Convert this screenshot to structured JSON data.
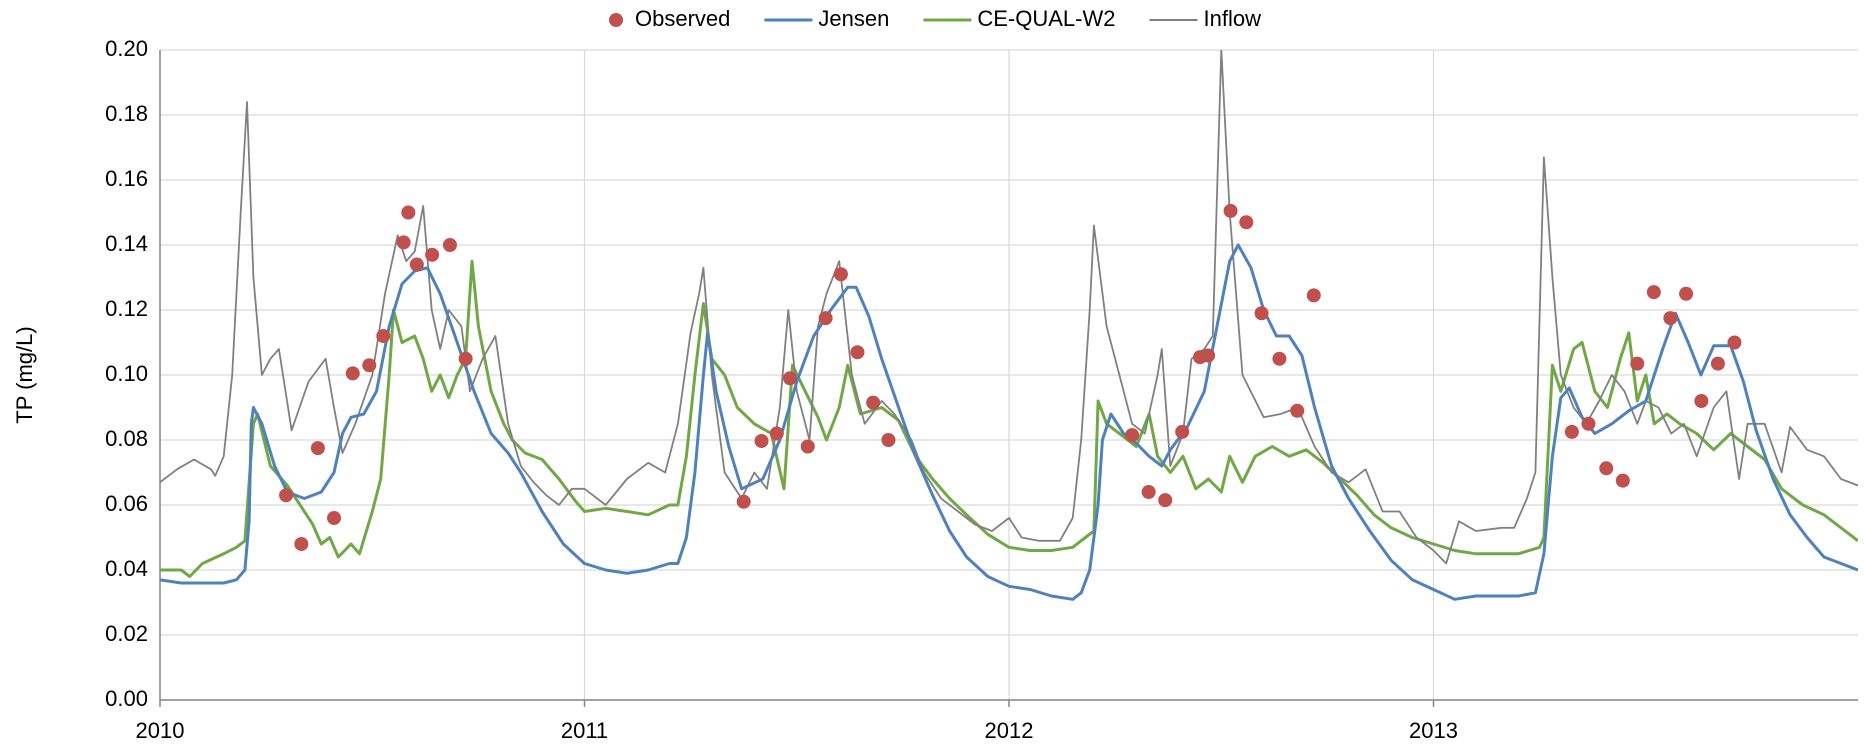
{
  "chart_data": {
    "type": "line",
    "y_label": "TP (mg/L)",
    "xlim": [
      2010,
      2014
    ],
    "xticks": [
      2010,
      2011,
      2012,
      2013
    ],
    "ylim": [
      0,
      0.2
    ],
    "yticks": [
      {
        "value": 0,
        "label": "0.00"
      },
      {
        "value": 0.02,
        "label": "0.02"
      },
      {
        "value": 0.04,
        "label": "0.04"
      },
      {
        "value": 0.06,
        "label": "0.06"
      },
      {
        "value": 0.08,
        "label": "0.08"
      },
      {
        "value": 0.1,
        "label": "0.10"
      },
      {
        "value": 0.12,
        "label": "0.12"
      },
      {
        "value": 0.14,
        "label": "0.14"
      },
      {
        "value": 0.16,
        "label": "0.16"
      },
      {
        "value": 0.18,
        "label": "0.18"
      },
      {
        "value": 0.2,
        "label": "0.20"
      }
    ],
    "grid": true,
    "legend": "top",
    "series": [
      {
        "name": "Observed",
        "type": "scatter",
        "color": "#c0504d",
        "x": [
          2010.297,
          2010.333,
          2010.372,
          2010.41,
          2010.454,
          2010.493,
          2010.526,
          2010.574,
          2010.585,
          2010.605,
          2010.641,
          2010.683,
          2010.72,
          2011.375,
          2011.417,
          2011.453,
          2011.484,
          2011.526,
          2011.568,
          2011.604,
          2011.643,
          2011.68,
          2011.716,
          2012.29,
          2012.329,
          2012.368,
          2012.408,
          2012.45,
          2012.469,
          2012.522,
          2012.559,
          2012.595,
          2012.637,
          2012.679,
          2012.718,
          2013.326,
          2013.365,
          2013.407,
          2013.446,
          2013.48,
          2013.519,
          2013.558,
          2013.595,
          2013.631,
          2013.67,
          2013.709
        ],
        "values": [
          0.063,
          0.048,
          0.0775,
          0.056,
          0.1005,
          0.103,
          0.112,
          0.1408,
          0.15,
          0.134,
          0.137,
          0.14,
          0.105,
          0.061,
          0.0797,
          0.082,
          0.099,
          0.078,
          0.1175,
          0.131,
          0.107,
          0.0915,
          0.08,
          0.0815,
          0.064,
          0.0615,
          0.0825,
          0.1055,
          0.106,
          0.1505,
          0.147,
          0.119,
          0.105,
          0.089,
          0.1245,
          0.0825,
          0.085,
          0.0713,
          0.0675,
          0.1035,
          0.1255,
          0.1175,
          0.125,
          0.092,
          0.1035,
          0.11
        ]
      },
      {
        "name": "Jensen",
        "type": "line",
        "color": "#4f81bd",
        "x": [
          2010.0,
          2010.05,
          2010.15,
          2010.18,
          2010.2,
          2010.21,
          2010.215,
          2010.22,
          2010.24,
          2010.27,
          2010.3,
          2010.34,
          2010.38,
          2010.41,
          2010.43,
          2010.45,
          2010.48,
          2010.51,
          2010.54,
          2010.57,
          2010.6,
          2010.63,
          2010.66,
          2010.7,
          2010.74,
          2010.78,
          2010.82,
          2010.85,
          2010.9,
          2010.95,
          2011.0,
          2011.05,
          2011.1,
          2011.15,
          2011.2,
          2011.22,
          2011.24,
          2011.26,
          2011.28,
          2011.29,
          2011.31,
          2011.34,
          2011.37,
          2011.42,
          2011.46,
          2011.5,
          2011.54,
          2011.58,
          2011.62,
          2011.64,
          2011.67,
          2011.7,
          2011.74,
          2011.78,
          2011.82,
          2011.86,
          2011.9,
          2011.95,
          2012.0,
          2012.05,
          2012.1,
          2012.15,
          2012.17,
          2012.19,
          2012.21,
          2012.22,
          2012.24,
          2012.27,
          2012.3,
          2012.33,
          2012.36,
          2012.38,
          2012.42,
          2012.46,
          2012.49,
          2012.52,
          2012.54,
          2012.57,
          2012.6,
          2012.63,
          2012.66,
          2012.69,
          2012.72,
          2012.76,
          2012.8,
          2012.85,
          2012.9,
          2012.95,
          2013.0,
          2013.05,
          2013.1,
          2013.2,
          2013.24,
          2013.26,
          2013.28,
          2013.3,
          2013.32,
          2013.35,
          2013.38,
          2013.42,
          2013.46,
          2013.5,
          2013.54,
          2013.57,
          2013.6,
          2013.63,
          2013.66,
          2013.7,
          2013.73,
          2013.76,
          2013.8,
          2013.84,
          2013.88,
          2013.92,
          2013.96,
          2014.0
        ],
        "values": [
          0.037,
          0.036,
          0.036,
          0.037,
          0.04,
          0.055,
          0.085,
          0.09,
          0.085,
          0.072,
          0.064,
          0.062,
          0.064,
          0.07,
          0.082,
          0.087,
          0.088,
          0.095,
          0.115,
          0.128,
          0.132,
          0.133,
          0.125,
          0.11,
          0.095,
          0.082,
          0.076,
          0.07,
          0.058,
          0.048,
          0.042,
          0.04,
          0.039,
          0.04,
          0.042,
          0.042,
          0.05,
          0.07,
          0.1,
          0.113,
          0.095,
          0.078,
          0.065,
          0.068,
          0.08,
          0.098,
          0.112,
          0.12,
          0.127,
          0.127,
          0.118,
          0.105,
          0.09,
          0.075,
          0.063,
          0.052,
          0.044,
          0.038,
          0.035,
          0.034,
          0.032,
          0.031,
          0.033,
          0.04,
          0.06,
          0.08,
          0.088,
          0.082,
          0.079,
          0.075,
          0.072,
          0.077,
          0.084,
          0.095,
          0.115,
          0.135,
          0.14,
          0.133,
          0.12,
          0.112,
          0.112,
          0.106,
          0.09,
          0.072,
          0.062,
          0.052,
          0.043,
          0.037,
          0.034,
          0.031,
          0.032,
          0.032,
          0.033,
          0.045,
          0.075,
          0.093,
          0.096,
          0.087,
          0.082,
          0.085,
          0.089,
          0.092,
          0.108,
          0.119,
          0.11,
          0.1,
          0.109,
          0.109,
          0.098,
          0.083,
          0.068,
          0.057,
          0.05,
          0.044,
          0.042,
          0.04
        ]
      },
      {
        "name": "CE-QUAL-W2",
        "type": "line",
        "color": "#70a845",
        "x": [
          2010.0,
          2010.05,
          2010.07,
          2010.1,
          2010.15,
          2010.18,
          2010.2,
          2010.22,
          2010.23,
          2010.26,
          2010.3,
          2010.33,
          2010.36,
          2010.38,
          2010.4,
          2010.42,
          2010.45,
          2010.47,
          2010.5,
          2010.52,
          2010.54,
          2010.55,
          2010.57,
          2010.6,
          2010.62,
          2010.64,
          2010.66,
          2010.68,
          2010.7,
          2010.72,
          2010.735,
          2010.75,
          2010.78,
          2010.81,
          2010.83,
          2010.86,
          2010.9,
          2010.94,
          2010.98,
          2011.0,
          2011.05,
          2011.1,
          2011.15,
          2011.2,
          2011.22,
          2011.24,
          2011.26,
          2011.28,
          2011.3,
          2011.33,
          2011.36,
          2011.4,
          2011.44,
          2011.47,
          2011.49,
          2011.52,
          2011.55,
          2011.57,
          2011.6,
          2011.62,
          2011.65,
          2011.7,
          2011.74,
          2011.78,
          2011.82,
          2011.86,
          2011.9,
          2011.95,
          2012.0,
          2012.05,
          2012.1,
          2012.15,
          2012.18,
          2012.2,
          2012.21,
          2012.23,
          2012.26,
          2012.3,
          2012.33,
          2012.35,
          2012.38,
          2012.41,
          2012.44,
          2012.47,
          2012.5,
          2012.52,
          2012.55,
          2012.58,
          2012.62,
          2012.66,
          2012.7,
          2012.74,
          2012.78,
          2012.82,
          2012.86,
          2012.9,
          2012.95,
          2013.0,
          2013.05,
          2013.1,
          2013.2,
          2013.25,
          2013.26,
          2013.28,
          2013.3,
          2013.33,
          2013.35,
          2013.38,
          2013.41,
          2013.44,
          2013.46,
          2013.48,
          2013.5,
          2013.52,
          2013.55,
          2013.58,
          2013.62,
          2013.66,
          2013.7,
          2013.74,
          2013.78,
          2013.82,
          2013.87,
          2013.92,
          2013.96,
          2014.0
        ],
        "values": [
          0.04,
          0.04,
          0.038,
          0.042,
          0.045,
          0.047,
          0.049,
          0.085,
          0.088,
          0.072,
          0.066,
          0.06,
          0.054,
          0.048,
          0.05,
          0.044,
          0.048,
          0.045,
          0.058,
          0.068,
          0.1,
          0.12,
          0.11,
          0.112,
          0.105,
          0.095,
          0.1,
          0.093,
          0.1,
          0.105,
          0.135,
          0.115,
          0.095,
          0.085,
          0.08,
          0.076,
          0.074,
          0.068,
          0.061,
          0.058,
          0.059,
          0.058,
          0.057,
          0.06,
          0.06,
          0.075,
          0.1,
          0.122,
          0.105,
          0.1,
          0.09,
          0.085,
          0.082,
          0.065,
          0.103,
          0.095,
          0.087,
          0.08,
          0.09,
          0.103,
          0.088,
          0.09,
          0.086,
          0.075,
          0.068,
          0.062,
          0.057,
          0.051,
          0.047,
          0.046,
          0.046,
          0.047,
          0.05,
          0.052,
          0.092,
          0.085,
          0.082,
          0.078,
          0.088,
          0.075,
          0.07,
          0.075,
          0.065,
          0.068,
          0.064,
          0.075,
          0.067,
          0.075,
          0.078,
          0.075,
          0.077,
          0.073,
          0.068,
          0.063,
          0.057,
          0.053,
          0.05,
          0.048,
          0.046,
          0.045,
          0.045,
          0.047,
          0.05,
          0.103,
          0.095,
          0.108,
          0.11,
          0.095,
          0.09,
          0.105,
          0.113,
          0.092,
          0.1,
          0.085,
          0.088,
          0.085,
          0.082,
          0.077,
          0.082,
          0.078,
          0.074,
          0.065,
          0.06,
          0.057,
          0.053,
          0.049
        ]
      },
      {
        "name": "Inflow",
        "type": "line",
        "color": "#808080",
        "x": [
          2010.0,
          2010.04,
          2010.08,
          2010.12,
          2010.13,
          2010.15,
          2010.17,
          2010.19,
          2010.205,
          2010.22,
          2010.24,
          2010.26,
          2010.28,
          2010.31,
          2010.35,
          2010.39,
          2010.41,
          2010.43,
          2010.46,
          2010.5,
          2010.53,
          2010.56,
          2010.58,
          2010.6,
          2010.62,
          2010.64,
          2010.66,
          2010.68,
          2010.71,
          2010.73,
          2010.76,
          2010.79,
          2010.82,
          2010.85,
          2010.88,
          2010.91,
          2010.94,
          2010.97,
          2011.0,
          2011.05,
          2011.1,
          2011.15,
          2011.19,
          2011.22,
          2011.25,
          2011.27,
          2011.28,
          2011.3,
          2011.33,
          2011.37,
          2011.4,
          2011.43,
          2011.46,
          2011.48,
          2011.5,
          2011.53,
          2011.55,
          2011.57,
          2011.6,
          2011.63,
          2011.66,
          2011.7,
          2011.73,
          2011.77,
          2011.8,
          2011.84,
          2011.88,
          2011.92,
          2011.96,
          2012.0,
          2012.03,
          2012.07,
          2012.12,
          2012.15,
          2012.17,
          2012.19,
          2012.2,
          2012.23,
          2012.26,
          2012.29,
          2012.32,
          2012.35,
          2012.36,
          2012.38,
          2012.41,
          2012.43,
          2012.46,
          2012.48,
          2012.5,
          2012.52,
          2012.55,
          2012.6,
          2012.64,
          2012.68,
          2012.72,
          2012.76,
          2012.8,
          2012.84,
          2012.88,
          2012.92,
          2012.96,
          2013.0,
          2013.03,
          2013.06,
          2013.1,
          2013.16,
          2013.19,
          2013.22,
          2013.24,
          2013.26,
          2013.28,
          2013.3,
          2013.33,
          2013.36,
          2013.39,
          2013.42,
          2013.45,
          2013.48,
          2013.5,
          2013.53,
          2013.56,
          2013.59,
          2013.62,
          2013.66,
          2013.69,
          2013.72,
          2013.74,
          2013.78,
          2013.82,
          2013.84,
          2013.88,
          2013.92,
          2013.96,
          2014.0
        ],
        "values": [
          0.067,
          0.071,
          0.074,
          0.071,
          0.069,
          0.075,
          0.1,
          0.15,
          0.184,
          0.13,
          0.1,
          0.105,
          0.108,
          0.083,
          0.098,
          0.105,
          0.09,
          0.076,
          0.085,
          0.1,
          0.125,
          0.143,
          0.135,
          0.138,
          0.152,
          0.12,
          0.108,
          0.12,
          0.115,
          0.095,
          0.105,
          0.112,
          0.085,
          0.072,
          0.067,
          0.063,
          0.06,
          0.065,
          0.065,
          0.06,
          0.068,
          0.073,
          0.07,
          0.085,
          0.113,
          0.125,
          0.133,
          0.1,
          0.07,
          0.062,
          0.07,
          0.065,
          0.09,
          0.12,
          0.095,
          0.08,
          0.115,
          0.125,
          0.135,
          0.1,
          0.085,
          0.092,
          0.088,
          0.08,
          0.07,
          0.062,
          0.058,
          0.054,
          0.052,
          0.056,
          0.05,
          0.049,
          0.049,
          0.056,
          0.08,
          0.12,
          0.146,
          0.115,
          0.1,
          0.085,
          0.082,
          0.1,
          0.108,
          0.072,
          0.082,
          0.105,
          0.108,
          0.112,
          0.2,
          0.15,
          0.1,
          0.087,
          0.088,
          0.09,
          0.078,
          0.07,
          0.067,
          0.071,
          0.058,
          0.058,
          0.05,
          0.046,
          0.042,
          0.055,
          0.052,
          0.053,
          0.053,
          0.062,
          0.07,
          0.167,
          0.13,
          0.1,
          0.09,
          0.085,
          0.092,
          0.1,
          0.095,
          0.085,
          0.092,
          0.09,
          0.082,
          0.085,
          0.075,
          0.09,
          0.095,
          0.068,
          0.085,
          0.085,
          0.07,
          0.084,
          0.077,
          0.075,
          0.068,
          0.066
        ]
      }
    ]
  }
}
